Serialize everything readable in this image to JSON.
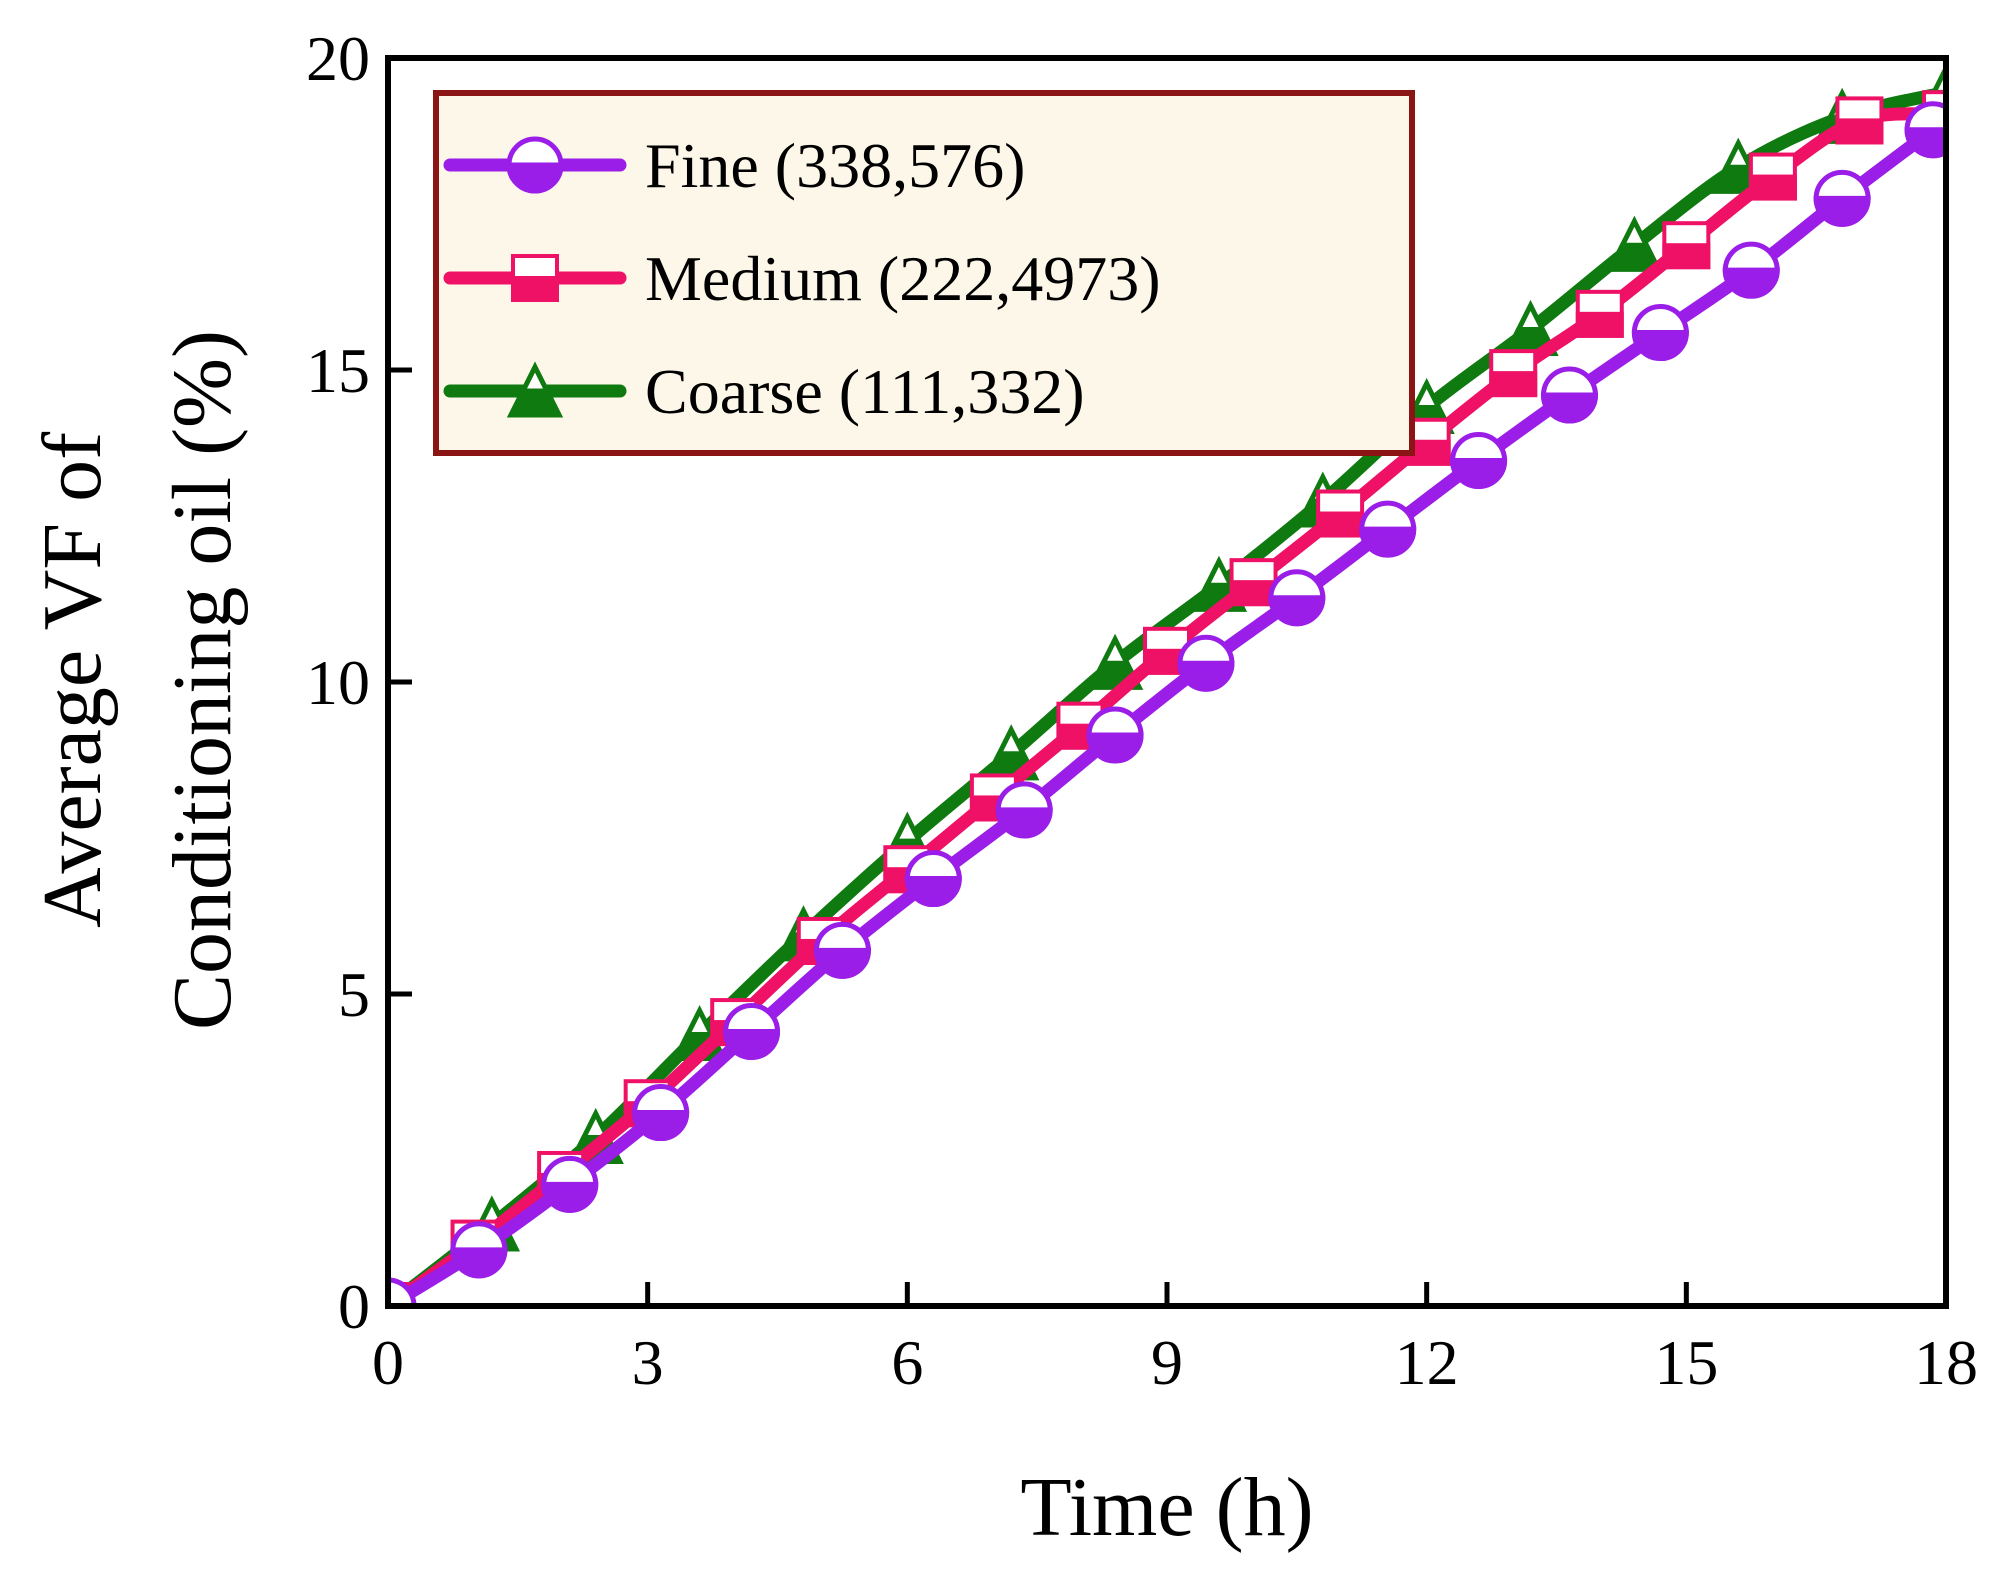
{
  "chart_data": {
    "type": "line",
    "title": "",
    "xlabel": "Time (h)",
    "ylabel_lines": [
      "Average VF of",
      "Conditioning oil (%)"
    ],
    "xlim": [
      0,
      18
    ],
    "ylim": [
      0,
      20
    ],
    "xticks": [
      0,
      3,
      6,
      9,
      12,
      15,
      18
    ],
    "yticks": [
      0,
      5,
      10,
      15,
      20
    ],
    "grid": false,
    "legend_position": "top-left",
    "series": [
      {
        "name": "Fine (338,576)",
        "color": "#9a1de8",
        "marker": "half-filled-circle",
        "x": [
          0,
          1.05,
          2.1,
          3.15,
          4.2,
          5.25,
          6.3,
          7.35,
          8.4,
          9.45,
          10.5,
          11.55,
          12.6,
          13.65,
          14.7,
          15.75,
          16.8,
          17.85
        ],
        "y": [
          0,
          0.9,
          1.95,
          3.1,
          4.4,
          5.7,
          6.85,
          7.95,
          9.15,
          10.3,
          11.35,
          12.45,
          13.55,
          14.6,
          15.6,
          16.6,
          17.75,
          18.85
        ]
      },
      {
        "name": "Medium (222,4973)",
        "color": "#ee1166",
        "marker": "half-filled-square",
        "x": [
          0,
          1.0,
          2.0,
          3.0,
          4.0,
          5.0,
          6.0,
          7.0,
          8.0,
          9.0,
          10.0,
          11.0,
          12.0,
          13.0,
          14.0,
          15.0,
          16.0,
          17.0,
          18.0
        ],
        "y": [
          0,
          1.0,
          2.1,
          3.25,
          4.55,
          5.85,
          7.0,
          8.15,
          9.3,
          10.5,
          11.6,
          12.7,
          13.85,
          14.95,
          15.9,
          17.0,
          18.1,
          19.0,
          19.1
        ]
      },
      {
        "name": "Coarse (111,332)",
        "color": "#0f7a0f",
        "marker": "half-filled-triangle",
        "x": [
          0,
          1.2,
          2.4,
          3.6,
          4.8,
          6.0,
          7.2,
          8.4,
          9.6,
          10.8,
          12.0,
          13.2,
          14.4,
          15.6,
          16.8,
          18.0
        ],
        "y": [
          0,
          1.3,
          2.7,
          4.35,
          5.95,
          7.45,
          8.85,
          10.3,
          11.55,
          12.9,
          14.4,
          15.65,
          17.0,
          18.25,
          19.05,
          19.45
        ]
      }
    ]
  }
}
